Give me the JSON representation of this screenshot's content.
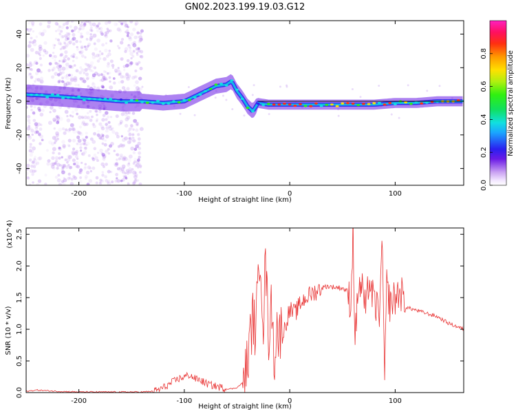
{
  "title": "GN02.2023.199.19.03.G12",
  "chart_data": [
    {
      "type": "heatmap",
      "xlabel": "Height of straight line (km)",
      "ylabel": "Frequency (Hz)",
      "xlim": [
        -250,
        165
      ],
      "ylim": [
        -50,
        48
      ],
      "xticks": [
        -200,
        -100,
        0,
        100
      ],
      "yticks": [
        -40,
        -20,
        0,
        20,
        40
      ],
      "colorbar": {
        "label": "Normalized spectral amplitude",
        "range": [
          0,
          1
        ],
        "ticks": [
          0.0,
          0.2,
          0.4,
          0.6,
          0.8
        ],
        "tick_labels": [
          "0.0",
          "0.2",
          "0.4",
          "0.6",
          "0.8"
        ]
      },
      "ridge": {
        "x": [
          -250,
          -220,
          -200,
          -180,
          -160,
          -140,
          -120,
          -100,
          -90,
          -80,
          -70,
          -60,
          -55,
          -50,
          -45,
          -40,
          -35,
          -30,
          -20,
          0,
          20,
          40,
          60,
          80,
          100,
          120,
          140,
          165
        ],
        "y": [
          4,
          3,
          2,
          1,
          0,
          0,
          -1,
          0,
          3,
          6,
          9,
          10,
          12,
          6,
          2,
          -3,
          -6,
          -1,
          -2,
          -2,
          -2,
          -2,
          -2,
          -2,
          -1,
          -1,
          0,
          0
        ]
      }
    },
    {
      "type": "line",
      "xlabel": "Height of straight line (km)",
      "ylabel": "SNR (10 * v/v)",
      "y_multiplier": "(x10^4)",
      "xlim": [
        -250,
        165
      ],
      "ylim": [
        0,
        2.6
      ],
      "xticks": [
        -200,
        -100,
        0,
        100
      ],
      "yticks": [
        0.0,
        0.5,
        1.0,
        1.5,
        2.0,
        2.5
      ],
      "ytick_labels": [
        "0.0",
        "0.5",
        "1.0",
        "1.5",
        "2.0",
        "2.5"
      ],
      "series": [
        {
          "x": [
            -250,
            -240,
            -230,
            -220,
            -200,
            -180,
            -160,
            -140,
            -130,
            -125,
            -120,
            -115,
            -110,
            -105,
            -100,
            -95,
            -90,
            -85,
            -80,
            -75,
            -70,
            -65,
            -60,
            -55,
            -50,
            -45,
            -42,
            -40,
            -38,
            -35,
            -33,
            -30,
            -28,
            -25,
            -23,
            -20,
            -17,
            -15,
            -12,
            -10,
            -7,
            -5,
            -2,
            0,
            5,
            10,
            15,
            20,
            25,
            30,
            35,
            40,
            45,
            50,
            55,
            58,
            60,
            62,
            65,
            70,
            72,
            75,
            80,
            85,
            88,
            90,
            92,
            95,
            100,
            105,
            110,
            120,
            130,
            140,
            150,
            165
          ],
          "y": [
            0.02,
            0.04,
            0.03,
            0.02,
            0.01,
            0.01,
            0.01,
            0.01,
            0.02,
            0.04,
            0.08,
            0.12,
            0.18,
            0.22,
            0.25,
            0.28,
            0.22,
            0.2,
            0.15,
            0.12,
            0.1,
            0.08,
            0.06,
            0.06,
            0.08,
            0.15,
            0.3,
            0.5,
            0.8,
            1.2,
            1.0,
            1.6,
            2.3,
            1.1,
            2.1,
            0.9,
            1.4,
            0.5,
            1.1,
            0.8,
            1.2,
            1.0,
            1.2,
            1.3,
            1.25,
            1.4,
            1.5,
            1.55,
            1.6,
            1.65,
            1.68,
            1.67,
            1.66,
            1.65,
            1.6,
            1.4,
            2.6,
            0.8,
            1.7,
            1.6,
            1.2,
            1.8,
            1.4,
            1.3,
            2.3,
            0.1,
            1.7,
            1.4,
            1.5,
            1.6,
            1.35,
            1.3,
            1.25,
            1.2,
            1.1,
            1.0
          ]
        }
      ]
    }
  ]
}
